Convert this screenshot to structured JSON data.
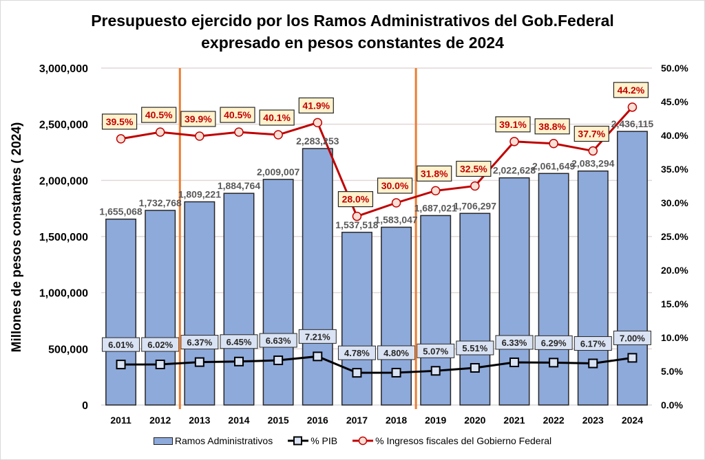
{
  "chart_data": {
    "type": "bar",
    "title_lines": [
      "Presupuesto ejercido por los Ramos Administrativos del Gob.Federal",
      "expresado en pesos constantes de 2024"
    ],
    "ylabel": "Millones de pesos constantes ( 2024)",
    "y2label": "",
    "xlabel": "",
    "categories": [
      "2011",
      "2012",
      "2013",
      "2014",
      "2015",
      "2016",
      "2017",
      "2018",
      "2019",
      "2020",
      "2021",
      "2022",
      "2023",
      "2024"
    ],
    "ylim": [
      0,
      3000000
    ],
    "y2lim": [
      0,
      0.5
    ],
    "y_ticks": [
      "0",
      "500,000",
      "1,000,000",
      "1,500,000",
      "2,000,000",
      "2,500,000",
      "3,000,000"
    ],
    "y_tick_values": [
      0,
      500000,
      1000000,
      1500000,
      2000000,
      2500000,
      3000000
    ],
    "y2_ticks": [
      "0.0%",
      "5.0%",
      "10.0%",
      "15.0%",
      "20.0%",
      "25.0%",
      "30.0%",
      "35.0%",
      "40.0%",
      "45.0%",
      "50.0%"
    ],
    "y2_tick_values": [
      0,
      0.05,
      0.1,
      0.15,
      0.2,
      0.25,
      0.3,
      0.35,
      0.4,
      0.45,
      0.5
    ],
    "grid": true,
    "legend_position": "bottom",
    "series": [
      {
        "name": "Ramos Administrativos",
        "type": "bar",
        "axis": "left",
        "color": "#8eaadb",
        "values": [
          1655068,
          1732768,
          1809221,
          1884764,
          2009007,
          2283253,
          1537518,
          1583047,
          1687021,
          1706297,
          2022628,
          2061649,
          2083294,
          2436115
        ],
        "labels": [
          "1,655,068",
          "1,732,768",
          "1,809,221",
          "1,884,764",
          "2,009,007",
          "2,283,253",
          "1,537,518",
          "1,583,047",
          "1,687,021",
          "1,706,297",
          "2,022,628",
          "2,061,649",
          "2,083,294",
          "2,436,115"
        ]
      },
      {
        "name": "% PIB",
        "type": "line",
        "axis": "right",
        "color": "#000000",
        "marker": "square",
        "values": [
          0.0601,
          0.0602,
          0.0637,
          0.0645,
          0.0663,
          0.0721,
          0.0478,
          0.048,
          0.0507,
          0.0551,
          0.0633,
          0.0629,
          0.0617,
          0.07
        ],
        "labels": [
          "6.01%",
          "6.02%",
          "6.37%",
          "6.45%",
          "6.63%",
          "7.21%",
          "4.78%",
          "4.80%",
          "5.07%",
          "5.51%",
          "6.33%",
          "6.29%",
          "6.17%",
          "7.00%"
        ]
      },
      {
        "name": "% Ingresos fiscales del Gobierno Federal",
        "type": "line",
        "axis": "right",
        "color": "#c00000",
        "marker": "circle",
        "values": [
          0.395,
          0.405,
          0.399,
          0.405,
          0.401,
          0.419,
          0.28,
          0.3,
          0.318,
          0.325,
          0.391,
          0.388,
          0.377,
          0.442
        ],
        "labels": [
          "39.5%",
          "40.5%",
          "39.9%",
          "40.5%",
          "40.1%",
          "41.9%",
          "28.0%",
          "30.0%",
          "31.8%",
          "32.5%",
          "39.1%",
          "38.8%",
          "37.7%",
          "44.2%"
        ]
      }
    ],
    "annotations": {
      "vertical_separators_between": [
        [
          "2012",
          "2013"
        ],
        [
          "2018",
          "2019"
        ]
      ],
      "separator_color": "#ed7d31"
    }
  },
  "legend": {
    "bar": "Ramos Administrativos",
    "pib": "% PIB",
    "ingresos": "% Ingresos fiscales del Gobierno Federal"
  }
}
